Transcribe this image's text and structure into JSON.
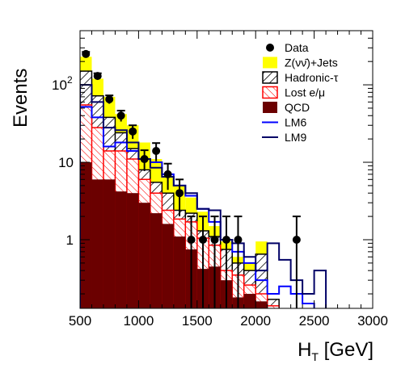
{
  "chart_data": {
    "type": "bar",
    "ylabel": "Events",
    "xlabel_main": "H",
    "xlabel_sub": "T",
    "xlabel_unit": " [GeV]",
    "ylog": true,
    "xlim": [
      500,
      3000
    ],
    "ylim": [
      0.13,
      500
    ],
    "xticks": [
      "500",
      "1000",
      "1500",
      "2000",
      "2500",
      "3000"
    ],
    "yticks": [
      {
        "v": 1,
        "label": "1"
      },
      {
        "v": 10,
        "label": "10"
      },
      {
        "v": 100,
        "label": "10",
        "sup": "2"
      }
    ],
    "bin_edges": [
      500,
      600,
      700,
      800,
      900,
      1000,
      1100,
      1200,
      1300,
      1400,
      1500,
      1600,
      1700,
      1800,
      1900,
      2000,
      2100,
      2200,
      2300,
      2400,
      2500,
      2600,
      2700
    ],
    "stack": [
      {
        "name": "QCD",
        "values": [
          10,
          6,
          6,
          4.2,
          4,
          3,
          2.2,
          1.6,
          1.1,
          0.75,
          0.42,
          0.45,
          0.3,
          0.18,
          0.2,
          0.16,
          0.13,
          0,
          0,
          0,
          0,
          0
        ]
      },
      {
        "name": "Lost e/μ",
        "values": [
          55,
          28,
          14,
          14,
          11,
          6,
          4,
          2.4,
          1.85,
          1.7,
          1.05,
          0.85,
          0.4,
          0.35,
          0.26,
          0.2,
          0.14,
          0,
          0,
          0,
          0,
          0
        ]
      },
      {
        "name": "Hadronic-τ",
        "values": [
          150,
          72,
          38,
          24,
          15,
          8,
          5.5,
          4,
          2.4,
          2.2,
          1.3,
          1.1,
          0.75,
          0.5,
          0.4,
          0.65,
          0.17,
          0,
          0,
          0,
          0,
          0
        ]
      },
      {
        "name": "Z(νν̄)+Jets",
        "values": [
          230,
          120,
          70,
          42,
          30,
          18,
          11,
          6.5,
          5,
          3.5,
          2.3,
          1.5,
          0.95,
          0.6,
          0.5,
          0.95,
          0.17,
          0,
          0,
          0,
          0,
          0
        ]
      }
    ],
    "lm6": [
      52,
      38,
      16,
      18,
      14,
      11,
      10,
      7,
      5,
      3.7,
      2.5,
      1.7,
      1,
      0.7,
      0.5,
      0.3,
      0.2,
      0.25,
      0.2,
      0.15,
      0,
      0
    ],
    "lm9": [
      100,
      60,
      28,
      26,
      18,
      11,
      8.5,
      6.5,
      5,
      4,
      2.5,
      2.4,
      1,
      0.9,
      0.6,
      0.4,
      0.9,
      0.55,
      0.3,
      0.2,
      0.4,
      0
    ],
    "data": {
      "x": [
        550,
        650,
        750,
        850,
        950,
        1050,
        1150,
        1250,
        1350,
        1450,
        1550,
        1650,
        1750,
        1850,
        2350
      ],
      "y": [
        250,
        130,
        65,
        40,
        25,
        11,
        14,
        7,
        4,
        1,
        1,
        1,
        1,
        1,
        1
      ],
      "err_up": [
        16,
        11,
        8,
        6.4,
        5,
        3.3,
        3.7,
        2.6,
        2,
        1,
        1,
        1,
        1,
        1,
        1
      ],
      "err_dn": [
        16,
        11,
        8,
        6.4,
        5,
        3.3,
        3.7,
        2.6,
        2,
        0.95,
        0.95,
        0.95,
        0.95,
        0.95,
        0.95
      ]
    },
    "legend": [
      {
        "label": "Data",
        "kind": "marker"
      },
      {
        "label": "Z(νν̄)+Jets",
        "kind": "fill-yellow"
      },
      {
        "label": "Hadronic-τ",
        "kind": "hatch-black"
      },
      {
        "label": "Lost e/μ",
        "kind": "hatch-red"
      },
      {
        "label": "QCD",
        "kind": "fill-qcd"
      },
      {
        "label": "LM6",
        "kind": "line-blue"
      },
      {
        "label": "LM9",
        "kind": "line-navy"
      }
    ],
    "colors": {
      "zjets": "#ffff00",
      "qcd": "#6b0000",
      "lost": "#ff0000",
      "tau": "#000000",
      "lm6": "#0000ff",
      "lm9": "#000066",
      "data": "#000000"
    }
  }
}
